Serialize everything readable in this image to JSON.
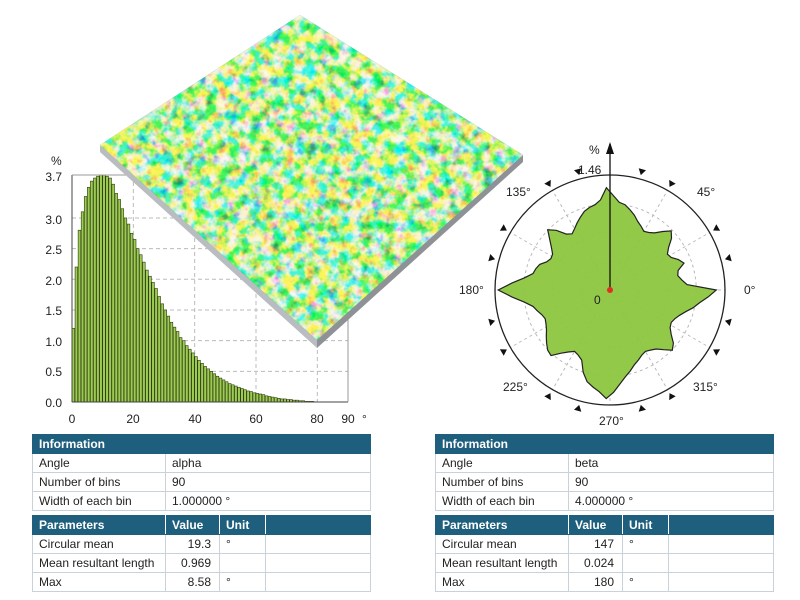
{
  "histogram": {
    "y_unit": "%",
    "x_unit": "°",
    "y_ticks": [
      "0.0",
      "0.5",
      "1.0",
      "1.5",
      "2.0",
      "2.5",
      "3.0",
      "3.7"
    ],
    "x_ticks": [
      "0",
      "20",
      "40",
      "60",
      "80",
      "90"
    ]
  },
  "polar": {
    "unit": "%",
    "max_label": "1.46",
    "center_label": "0",
    "angle_labels": [
      "0°",
      "45°",
      "135°",
      "180°",
      "225°",
      "270°",
      "315°"
    ],
    "fill_color": "#8dc63f"
  },
  "chart_data": [
    {
      "type": "bar",
      "xlabel": "",
      "ylabel": "",
      "xlim": [
        0,
        90
      ],
      "ylim": [
        0,
        3.7
      ],
      "bin_width": 1,
      "values": [
        1.2,
        2.2,
        2.8,
        3.1,
        3.35,
        3.5,
        3.6,
        3.65,
        3.68,
        3.7,
        3.7,
        3.68,
        3.65,
        3.55,
        3.4,
        3.3,
        3.15,
        3.0,
        2.9,
        2.75,
        2.65,
        2.5,
        2.4,
        2.28,
        2.15,
        2.05,
        1.95,
        1.85,
        1.72,
        1.6,
        1.5,
        1.4,
        1.3,
        1.22,
        1.15,
        1.05,
        1.0,
        0.92,
        0.86,
        0.8,
        0.74,
        0.68,
        0.63,
        0.58,
        0.54,
        0.5,
        0.46,
        0.42,
        0.39,
        0.36,
        0.33,
        0.3,
        0.28,
        0.26,
        0.24,
        0.22,
        0.2,
        0.18,
        0.17,
        0.15,
        0.14,
        0.13,
        0.12,
        0.1,
        0.09,
        0.08,
        0.07,
        0.06,
        0.05,
        0.05,
        0.04,
        0.04,
        0.03,
        0.03,
        0.02,
        0.02,
        0.01,
        0.01,
        0.01,
        0.0,
        0,
        0,
        0,
        0,
        0,
        0,
        0,
        0,
        0,
        0
      ]
    },
    {
      "type": "area",
      "polar": true,
      "rmax": 1.46,
      "angles": [
        0,
        4,
        8,
        12,
        16,
        20,
        24,
        28,
        32,
        36,
        40,
        44,
        48,
        52,
        56,
        60,
        64,
        68,
        72,
        76,
        80,
        84,
        88,
        92,
        96,
        100,
        104,
        108,
        112,
        116,
        120,
        124,
        128,
        132,
        136,
        140,
        144,
        148,
        152,
        156,
        160,
        164,
        168,
        172,
        176,
        180,
        184,
        188,
        192,
        196,
        200,
        204,
        208,
        212,
        216,
        220,
        224,
        228,
        232,
        236,
        240,
        244,
        248,
        252,
        256,
        260,
        264,
        268,
        272,
        276,
        280,
        284,
        288,
        292,
        296,
        300,
        304,
        308,
        312,
        316,
        320,
        324,
        328,
        332,
        336,
        340,
        344,
        348,
        352,
        356
      ],
      "values": [
        1.35,
        0.98,
        0.92,
        0.88,
        0.9,
        1.0,
        0.95,
        0.88,
        0.86,
        0.92,
        1.02,
        1.08,
        1.0,
        0.92,
        0.88,
        0.86,
        0.9,
        0.94,
        1.0,
        1.05,
        1.1,
        1.12,
        1.2,
        1.3,
        1.15,
        1.1,
        1.08,
        1.05,
        1.0,
        0.95,
        0.9,
        0.86,
        0.9,
        1.02,
        1.1,
        1.0,
        0.92,
        0.86,
        0.85,
        0.88,
        0.95,
        0.98,
        1.0,
        1.1,
        1.25,
        1.42,
        1.25,
        1.1,
        1.0,
        0.96,
        0.92,
        0.9,
        0.92,
        0.95,
        1.0,
        1.05,
        1.1,
        1.12,
        1.02,
        0.95,
        0.9,
        0.92,
        0.96,
        1.1,
        1.2,
        1.25,
        1.3,
        1.38,
        1.3,
        1.2,
        1.12,
        1.06,
        1.0,
        0.96,
        0.92,
        0.9,
        0.92,
        0.95,
        1.02,
        1.1,
        1.05,
        0.96,
        0.9,
        0.88,
        0.9,
        0.94,
        1.0,
        1.08,
        1.15,
        1.25
      ]
    }
  ],
  "left_info": {
    "header": "Information",
    "rows": [
      {
        "label": "Angle",
        "value": "alpha"
      },
      {
        "label": "Number of bins",
        "value": "90"
      },
      {
        "label": "Width of each bin",
        "value": "1.000000 °"
      }
    ]
  },
  "left_params": {
    "headers": {
      "name": "Parameters",
      "value": "Value",
      "unit": "Unit"
    },
    "rows": [
      {
        "label": "Circular mean",
        "value": "19.3",
        "unit": "°"
      },
      {
        "label": "Mean resultant length",
        "value": "0.969",
        "unit": ""
      },
      {
        "label": "Max",
        "value": "8.58",
        "unit": "°"
      }
    ]
  },
  "right_info": {
    "header": "Information",
    "rows": [
      {
        "label": "Angle",
        "value": "beta"
      },
      {
        "label": "Number of bins",
        "value": "90"
      },
      {
        "label": "Width of each bin",
        "value": "4.000000 °"
      }
    ]
  },
  "right_params": {
    "headers": {
      "name": "Parameters",
      "value": "Value",
      "unit": "Unit"
    },
    "rows": [
      {
        "label": "Circular mean",
        "value": "147",
        "unit": "°"
      },
      {
        "label": "Mean resultant length",
        "value": "0.024",
        "unit": ""
      },
      {
        "label": "Max",
        "value": "180",
        "unit": "°"
      }
    ]
  }
}
